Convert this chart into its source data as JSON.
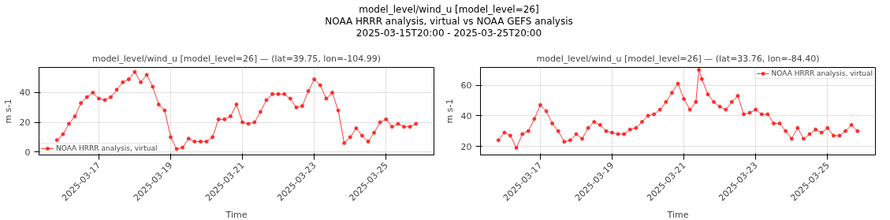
{
  "chart_data": [
    {
      "type": "line",
      "title": "model_level/wind_u [model_level=26] — (lat=39.75, lon=-104.99)",
      "annotations": [
        "model_level/wind_u [model_level=26]",
        "NOAA HRRR analysis, virtual vs NOAA GEFS analysis",
        "2025-03-15T20:00 - 2025-03-25T20:00"
      ],
      "xlabel": "Time",
      "ylabel": "m s-1",
      "x": [
        "2025-03-15T20:00",
        "2025-03-16T00:00",
        "2025-03-16T04:00",
        "2025-03-16T08:00",
        "2025-03-16T12:00",
        "2025-03-16T16:00",
        "2025-03-16T20:00",
        "2025-03-17T00:00",
        "2025-03-17T04:00",
        "2025-03-17T08:00",
        "2025-03-17T12:00",
        "2025-03-17T16:00",
        "2025-03-17T20:00",
        "2025-03-18T00:00",
        "2025-03-18T04:00",
        "2025-03-18T08:00",
        "2025-03-18T12:00",
        "2025-03-18T16:00",
        "2025-03-18T20:00",
        "2025-03-19T00:00",
        "2025-03-19T04:00",
        "2025-03-19T08:00",
        "2025-03-19T12:00",
        "2025-03-19T16:00",
        "2025-03-19T20:00",
        "2025-03-20T00:00",
        "2025-03-20T04:00",
        "2025-03-20T08:00",
        "2025-03-20T12:00",
        "2025-03-20T16:00",
        "2025-03-20T20:00",
        "2025-03-21T00:00",
        "2025-03-21T04:00",
        "2025-03-21T08:00",
        "2025-03-21T12:00",
        "2025-03-21T16:00",
        "2025-03-21T20:00",
        "2025-03-22T00:00",
        "2025-03-22T04:00",
        "2025-03-22T08:00",
        "2025-03-22T12:00",
        "2025-03-22T16:00",
        "2025-03-22T20:00",
        "2025-03-23T00:00",
        "2025-03-23T04:00",
        "2025-03-23T08:00",
        "2025-03-23T12:00",
        "2025-03-23T16:00",
        "2025-03-23T20:00",
        "2025-03-24T00:00",
        "2025-03-24T04:00",
        "2025-03-24T08:00",
        "2025-03-24T12:00",
        "2025-03-24T16:00",
        "2025-03-24T20:00",
        "2025-03-25T00:00",
        "2025-03-25T04:00",
        "2025-03-25T08:00",
        "2025-03-25T12:00",
        "2025-03-25T16:00",
        "2025-03-25T20:00"
      ],
      "series": [
        {
          "name": "NOAA HRRR analysis, virtual",
          "color": "#ff1a1a",
          "values": [
            8,
            12,
            19,
            24,
            33,
            37,
            40,
            36,
            35,
            37,
            42,
            47,
            49,
            54,
            47,
            52,
            44,
            32,
            28,
            10,
            2,
            3,
            9,
            7,
            7,
            7,
            10,
            22,
            22,
            24,
            32,
            20,
            19,
            20,
            27,
            35,
            39,
            39,
            39,
            36,
            30,
            31,
            41,
            49,
            45,
            36,
            40,
            28,
            6,
            10,
            16,
            11,
            7,
            13,
            20,
            22,
            17,
            19,
            17,
            17,
            19
          ]
        }
      ],
      "xlim": [
        "2025-03-15T08:00",
        "2025-03-26T08:00"
      ],
      "xticks": [
        "2025-03-17",
        "2025-03-19",
        "2025-03-21",
        "2025-03-23",
        "2025-03-25"
      ],
      "ylim": [
        -2,
        57
      ],
      "yticks": [
        0,
        20,
        40
      ],
      "grid": true,
      "legend": "bottom left",
      "marker": "circle",
      "line_style": "solid"
    },
    {
      "type": "line",
      "title": "model_level/wind_u [model_level=26] — (lat=33.76, lon=-84.40)",
      "xlabel": "Time",
      "ylabel": "m s-1",
      "x": [
        "2025-03-15T20:00",
        "2025-03-16T00:00",
        "2025-03-16T04:00",
        "2025-03-16T08:00",
        "2025-03-16T12:00",
        "2025-03-16T16:00",
        "2025-03-16T20:00",
        "2025-03-17T00:00",
        "2025-03-17T04:00",
        "2025-03-17T08:00",
        "2025-03-17T12:00",
        "2025-03-17T16:00",
        "2025-03-17T20:00",
        "2025-03-18T00:00",
        "2025-03-18T04:00",
        "2025-03-18T08:00",
        "2025-03-18T12:00",
        "2025-03-18T16:00",
        "2025-03-18T20:00",
        "2025-03-19T00:00",
        "2025-03-19T04:00",
        "2025-03-19T08:00",
        "2025-03-19T12:00",
        "2025-03-19T16:00",
        "2025-03-19T20:00",
        "2025-03-20T00:00",
        "2025-03-20T04:00",
        "2025-03-20T08:00",
        "2025-03-20T12:00",
        "2025-03-20T16:00",
        "2025-03-20T20:00",
        "2025-03-21T00:00",
        "2025-03-21T04:00",
        "2025-03-21T08:00",
        "2025-03-21T10:00",
        "2025-03-21T12:00",
        "2025-03-21T16:00",
        "2025-03-21T20:00",
        "2025-03-22T00:00",
        "2025-03-22T04:00",
        "2025-03-22T08:00",
        "2025-03-22T12:00",
        "2025-03-22T16:00",
        "2025-03-22T20:00",
        "2025-03-23T00:00",
        "2025-03-23T04:00",
        "2025-03-23T08:00",
        "2025-03-23T12:00",
        "2025-03-23T16:00",
        "2025-03-23T20:00",
        "2025-03-24T00:00",
        "2025-03-24T04:00",
        "2025-03-24T08:00",
        "2025-03-24T12:00",
        "2025-03-24T16:00",
        "2025-03-24T20:00",
        "2025-03-25T00:00",
        "2025-03-25T04:00",
        "2025-03-25T08:00",
        "2025-03-25T12:00",
        "2025-03-25T16:00",
        "2025-03-25T20:00"
      ],
      "series": [
        {
          "name": "NOAA HRRR analysis, virtual",
          "color": "#ff1a1a",
          "values": [
            24,
            29,
            27,
            19,
            28,
            30,
            38,
            47,
            43,
            35,
            30,
            23,
            24,
            28,
            25,
            32,
            36,
            34,
            30,
            29,
            28,
            28,
            31,
            32,
            36,
            40,
            41,
            44,
            49,
            55,
            61,
            51,
            44,
            49,
            70,
            64,
            54,
            49,
            46,
            44,
            49,
            53,
            41,
            42,
            44,
            41,
            41,
            35,
            35,
            30,
            25,
            32,
            25,
            28,
            31,
            29,
            32,
            27,
            27,
            30,
            34,
            30
          ]
        }
      ],
      "xlim": [
        "2025-03-15T08:00",
        "2025-03-26T08:00"
      ],
      "xticks": [
        "2025-03-17",
        "2025-03-19",
        "2025-03-21",
        "2025-03-23",
        "2025-03-25"
      ],
      "ylim": [
        14.4,
        71.6
      ],
      "yticks": [
        20,
        40,
        60
      ],
      "grid": true,
      "legend": "top right",
      "marker": "circle",
      "line_style": "solid"
    }
  ]
}
